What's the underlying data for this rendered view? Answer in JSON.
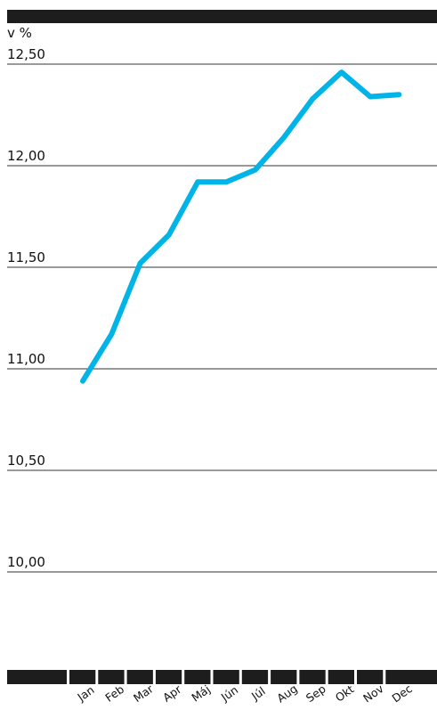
{
  "chart_data": {
    "type": "line",
    "unit_label": "v %",
    "categories": [
      "Jan",
      "Feb",
      "Mar",
      "Apr",
      "Máj",
      "Jún",
      "Júl",
      "Aug",
      "Sep",
      "Okt",
      "Nov",
      "Dec"
    ],
    "series": [
      {
        "values": [
          10.94,
          11.17,
          11.52,
          11.66,
          11.92,
          11.92,
          11.98,
          12.14,
          12.33,
          12.46,
          12.34,
          12.35
        ]
      }
    ],
    "y_ticks": [
      "12,50",
      "12,00",
      "11,50",
      "11,00",
      "10,50",
      "10,00"
    ],
    "ylim": [
      9.7,
      12.55
    ],
    "grid": true,
    "colors": {
      "line": "#00b4e8",
      "frame": "#1d1d1d",
      "grid": "#333333"
    }
  }
}
